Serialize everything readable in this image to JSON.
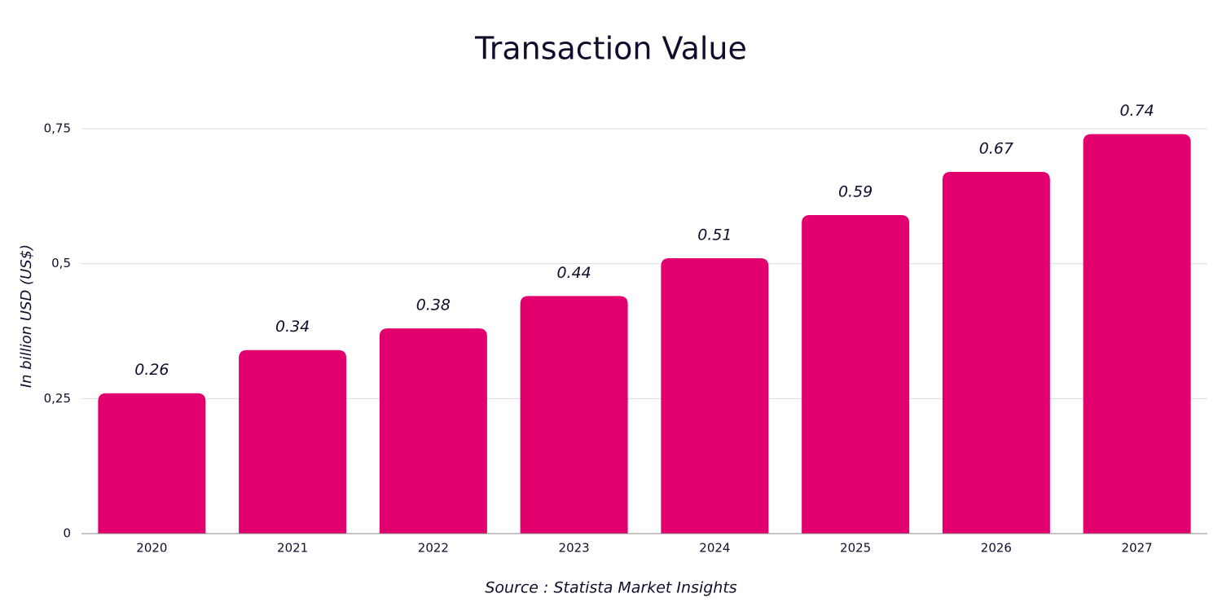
{
  "chart_data": {
    "type": "bar",
    "title": "Transaction Value",
    "y_label": "In billion USD (US$)",
    "source": "Source : Statista Market Insights",
    "categories": [
      "2020",
      "2021",
      "2022",
      "2023",
      "2024",
      "2025",
      "2026",
      "2027"
    ],
    "values": [
      0.26,
      0.34,
      0.38,
      0.44,
      0.51,
      0.59,
      0.67,
      0.74
    ],
    "color": "#e2006f",
    "ylim": [
      0,
      0.75
    ],
    "yticks": [
      0,
      {
        "value": 0.25,
        "label": "0,25"
      },
      {
        "value": 0.5,
        "label": "0,5"
      },
      {
        "value": 0.75,
        "label": "0,75"
      }
    ],
    "grid": true
  }
}
